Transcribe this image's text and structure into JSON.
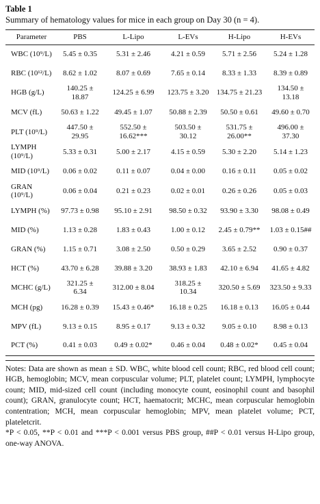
{
  "header": {
    "label": "Table 1",
    "title": "Summary of hematology values for mice in each group on Day 30 (n = 4)."
  },
  "table": {
    "columns": [
      "Parameter",
      "PBS",
      "L-Lipo",
      "L-EVs",
      "H-Lipo",
      "H-EVs"
    ],
    "rows": [
      [
        "WBC (10⁹/L)",
        "5.45 ± 0.35",
        "5.31 ± 2.46",
        "4.21 ± 0.59",
        "5.71 ± 2.56",
        "5.24 ± 1.28"
      ],
      [
        "RBC (10¹²/L)",
        "8.62 ± 1.02",
        "8.07 ± 0.69",
        "7.65 ± 0.14",
        "8.33 ± 1.33",
        "8.39 ± 0.89"
      ],
      [
        "HGB (g/L)",
        "140.25 ± 18.87",
        "124.25 ± 6.99",
        "123.75 ± 3.20",
        "134.75 ± 21.23",
        "134.50 ± 13.18"
      ],
      [
        "MCV (fL)",
        "50.63 ± 1.22",
        "49.45 ± 1.07",
        "50.88 ± 2.39",
        "50.50 ± 0.61",
        "49.60 ± 0.70"
      ],
      [
        "PLT (10⁹/L)",
        "447.50 ± 29.95",
        "552.50 ± 16.62***",
        "503.50 ± 30.12",
        "531.75 ± 26.00**",
        "496.00 ± 37.30"
      ],
      [
        "LYMPH (10⁹/L)",
        "5.33 ± 0.31",
        "5.00 ± 2.17",
        "4.15 ± 0.59",
        "5.30 ± 2.20",
        "5.14 ± 1.23"
      ],
      [
        "MID (10⁹/L)",
        "0.06 ± 0.02",
        "0.11 ± 0.07",
        "0.04 ± 0.00",
        "0.16 ± 0.11",
        "0.05 ± 0.02"
      ],
      [
        "GRAN (10⁹/L)",
        "0.06 ± 0.04",
        "0.21 ± 0.23",
        "0.02 ± 0.01",
        "0.26 ± 0.26",
        "0.05 ± 0.03"
      ],
      [
        "LYMPH (%)",
        "97.73 ± 0.98",
        "95.10 ± 2.91",
        "98.50 ± 0.32",
        "93.90 ± 3.30",
        "98.08 ± 0.49"
      ],
      [
        "MID (%)",
        "1.13 ± 0.28",
        "1.83 ± 0.43",
        "1.00 ± 0.12",
        "2.45 ± 0.79**",
        "1.03 ± 0.15##"
      ],
      [
        "GRAN (%)",
        "1.15 ± 0.71",
        "3.08 ± 2.50",
        "0.50 ± 0.29",
        "3.65 ± 2.52",
        "0.90 ± 0.37"
      ],
      [
        "HCT (%)",
        "43.70 ± 6.28",
        "39.88 ± 3.20",
        "38.93 ± 1.83",
        "42.10 ± 6.94",
        "41.65 ± 4.82"
      ],
      [
        "MCHC (g/L)",
        "321.25 ± 6.34",
        "312.00 ± 8.04",
        "318.25 ± 10.34",
        "320.50 ± 5.69",
        "323.50 ± 9.33"
      ],
      [
        "MCH (pg)",
        "16.28 ± 0.39",
        "15.43 ± 0.46*",
        "16.18 ± 0.25",
        "16.18 ± 0.13",
        "16.05 ± 0.44"
      ],
      [
        "MPV (fL)",
        "9.13 ± 0.15",
        "8.95 ± 0.17",
        "9.13 ± 0.32",
        "9.05 ± 0.10",
        "8.98 ± 0.13"
      ],
      [
        "PCT (%)",
        "0.41 ± 0.03",
        "0.49 ± 0.02*",
        "0.46 ± 0.04",
        "0.48 ± 0.02*",
        "0.45 ± 0.04"
      ]
    ]
  },
  "notes": [
    "Notes: Data are shown as mean ± SD. WBC, white blood cell count; RBC, red blood cell count; HGB, hemoglobin; MCV, mean corpuscular volume; PLT, platelet count; LYMPH, lymphocyte count; MID, mid-sized cell count (including monocyte count, eosinophil count and basophil count); GRAN, granulocyte count; HCT, haematocrit; MCHC, mean corpuscular hemoglobin contentration; MCH, mean corpuscular hemoglobin; MPV, mean platelet volume; PCT, plateletcrit.",
    "*P < 0.05, **P < 0.01 and ***P < 0.001 versus PBS group, ##P < 0.01 versus H-Lipo group, one-way ANOVA."
  ]
}
